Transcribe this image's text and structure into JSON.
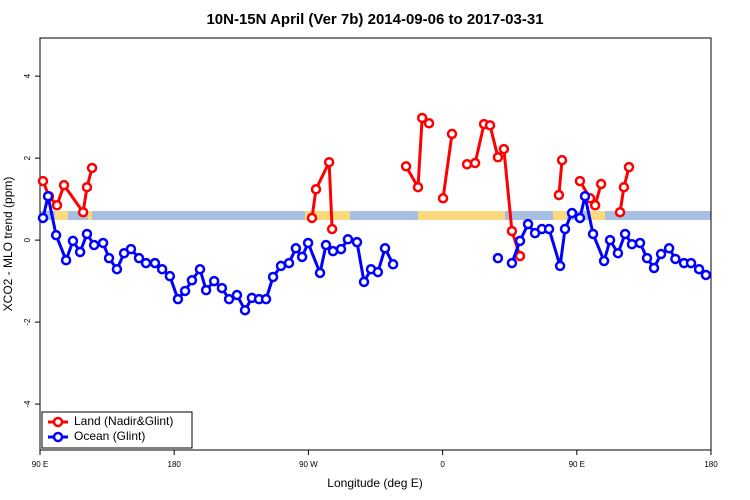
{
  "chart_data": {
    "type": "line",
    "title": "10N-15N April (Ver 7b)   2014-09-06 to 2017-03-31",
    "x_label": "Longitude (deg E)",
    "y_label": "XCO2 - MLO trend (ppm)",
    "xlim": [
      90,
      540
    ],
    "ylim": [
      -5.12,
      4.93
    ],
    "xticks": [
      {
        "value": 90,
        "label": "90 E"
      },
      180,
      {
        "value": 270,
        "label": "90 W"
      },
      {
        "value": 360,
        "label": "0"
      },
      {
        "value": 450,
        "label": "90 E"
      },
      {
        "value": 540,
        "label": "180"
      }
    ],
    "yticks": [
      -4,
      -2,
      0,
      2,
      4
    ],
    "legend": "bottom-left",
    "band": {
      "range": [
        0.49,
        0.71
      ],
      "ocean_color": "#a7bfe2",
      "land_color": "#fcd97c",
      "land_spans": [
        [
          100.1,
          108.8
        ],
        [
          122.2,
          124.9
        ],
        [
          267.7,
          297.9
        ],
        [
          343.5,
          401.8
        ],
        [
          434.0,
          443.4
        ],
        [
          458.8,
          468.9
        ]
      ]
    },
    "series": [
      {
        "name": "Land (Nadir&Glint)",
        "color": "#ff0000",
        "x": [
          92.0,
          96.0,
          101.4,
          106.1,
          118.9,
          121.5,
          124.9,
          150,
          272.4,
          275.1,
          283.9,
          285.9,
          300,
          335.5,
          343.5,
          346.3,
          350.9,
          355,
          360.3,
          366.3,
          370,
          376.4,
          381.8,
          387.8,
          391.8,
          397.1,
          401.1,
          406.5,
          411.9,
          420,
          438.0,
          440.1,
          445,
          452.1,
          458.9,
          462.3,
          466.3,
          475,
          479.0,
          481.6,
          485.0
        ],
        "values": [
          1.44,
          1.07,
          0.85,
          1.34,
          0.68,
          1.29,
          1.76,
          null,
          0.54,
          1.24,
          1.9,
          0.27,
          null,
          1.8,
          1.29,
          2.98,
          2.85,
          null,
          1.02,
          2.59,
          null,
          1.85,
          1.88,
          2.83,
          2.8,
          2.02,
          2.22,
          0.22,
          -0.39,
          null,
          1.1,
          1.95,
          null,
          1.44,
          1.02,
          0.85,
          1.37,
          null,
          0.68,
          1.29,
          1.78
        ]
      },
      {
        "name": "Ocean (Glint)",
        "color": "#0000ff",
        "x": [
          92.0,
          95.4,
          100.8,
          107.5,
          112.1,
          116.9,
          121.5,
          126.3,
          132.3,
          136.3,
          141.6,
          146.4,
          151.0,
          156.4,
          161.1,
          167.1,
          171.9,
          177.1,
          182.5,
          187.3,
          191.9,
          197.3,
          201.4,
          206.8,
          212.0,
          216.8,
          222.1,
          227.5,
          232.1,
          236.9,
          241.6,
          246.3,
          251.6,
          257.0,
          261.6,
          265.8,
          269.8,
          277.8,
          281.8,
          286.5,
          291.9,
          296.5,
          302.6,
          307.3,
          312.0,
          316.6,
          321.4,
          326.8,
          360,
          397.1,
          403,
          406.5,
          411.9,
          417.3,
          422.0,
          426.6,
          431.4,
          438.8,
          442.1,
          446.8,
          452.1,
          455.5,
          460.9,
          468.3,
          472.3,
          477.6,
          482.4,
          487.0,
          492.4,
          497.1,
          501.8,
          506.5,
          511.9,
          516.1,
          521.9,
          526.6,
          532.0,
          536.6
        ],
        "values": [
          0.54,
          1.07,
          0.12,
          -0.49,
          -0.02,
          -0.29,
          0.15,
          -0.12,
          -0.07,
          -0.44,
          -0.71,
          -0.32,
          -0.22,
          -0.44,
          -0.56,
          -0.56,
          -0.71,
          -0.88,
          -1.44,
          -1.24,
          -0.98,
          -0.71,
          -1.22,
          -1.0,
          -1.17,
          -1.44,
          -1.34,
          -1.71,
          -1.41,
          -1.44,
          -1.44,
          -0.9,
          -0.63,
          -0.56,
          -0.2,
          -0.41,
          -0.07,
          -0.8,
          -0.12,
          -0.27,
          -0.22,
          0.02,
          -0.05,
          -1.02,
          -0.71,
          -0.78,
          -0.2,
          -0.59,
          null,
          -0.44,
          null,
          -0.56,
          -0.02,
          0.39,
          0.17,
          0.27,
          0.27,
          -0.63,
          0.27,
          0.66,
          0.54,
          1.07,
          0.15,
          -0.51,
          0.0,
          -0.32,
          0.15,
          -0.1,
          -0.07,
          -0.44,
          -0.68,
          -0.34,
          -0.2,
          -0.46,
          -0.56,
          -0.56,
          -0.71,
          -0.85
        ]
      }
    ]
  }
}
